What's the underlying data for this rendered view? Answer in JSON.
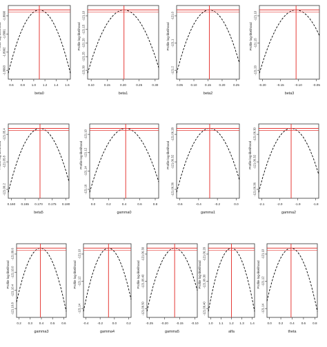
{
  "chart_data": [
    {
      "type": "line",
      "xlabel": "beta0",
      "ylabel": "Profile log-likelihood",
      "xticks": [
        "0.6",
        "0.8",
        "1.0",
        "1.2",
        "1.4",
        "1.6"
      ],
      "yticks": [
        "-1.8993",
        "-1.8992",
        "-1.8991",
        "-1.8990"
      ],
      "xlim": [
        0.55,
        1.65
      ],
      "ylim": [
        0,
        1
      ],
      "mle": 1.1,
      "colors": {
        "curve": "#000000",
        "mle": "#e53935"
      }
    },
    {
      "type": "line",
      "xlabel": "beta1",
      "ylabel": "Profile log-likelihood",
      "xticks": [
        "0.10",
        "0.15",
        "0.20",
        "0.25",
        "0.30"
      ],
      "yticks": [
        "-121.30",
        "-121.25",
        "-121.20",
        "-121.15",
        "-121.10"
      ],
      "xlim": [
        0.095,
        0.31
      ],
      "ylim": [
        0,
        1
      ],
      "mle": 0.205,
      "colors": {
        "curve": "#000000",
        "mle": "#e53935"
      }
    },
    {
      "type": "line",
      "xlabel": "beta2",
      "ylabel": "Profile log-likelihood",
      "xticks": [
        "0.05",
        "0.10",
        "0.15",
        "0.20",
        "0.25"
      ],
      "yticks": [
        "-121.2",
        "-121.1",
        "-121.0"
      ],
      "xlim": [
        0.04,
        0.27
      ],
      "ylim": [
        0,
        1
      ],
      "mle": 0.16,
      "colors": {
        "curve": "#000000",
        "mle": "#e53935"
      }
    },
    {
      "type": "line",
      "xlabel": "beta3",
      "ylabel": "Profile log-likelihood",
      "xticks": [
        "-0.20",
        "-0.15",
        "-0.10",
        "-0.05"
      ],
      "yticks": [
        "-121.20",
        "-121.15",
        "-121.10"
      ],
      "xlim": [
        -0.215,
        -0.035
      ],
      "ylim": [
        0,
        1
      ],
      "mle": -0.105,
      "colors": {
        "curve": "#000000",
        "mle": "#e53935"
      }
    },
    {
      "type": "line",
      "xlabel": "beta5",
      "ylabel": "Profile log-likelihood",
      "xticks": [
        "0.160",
        "0.165",
        "0.170",
        "0.175",
        "0.180"
      ],
      "yticks": [
        "-121.06.2",
        "-121.05.8",
        "-121.05.4"
      ],
      "xlim": [
        0.159,
        0.181
      ],
      "ylim": [
        0,
        1
      ],
      "mle": 0.1705,
      "colors": {
        "curve": "#000000",
        "mle": "#e53935"
      }
    },
    {
      "type": "line",
      "xlabel": "gamma0",
      "ylabel": "Profile log-likelihood",
      "xticks": [
        "0.0",
        "0.2",
        "0.4",
        "0.6",
        "0.8"
      ],
      "yticks": [
        "-121.16",
        "-121.14",
        "-121.12",
        "-121.10"
      ],
      "xlim": [
        -0.05,
        0.85
      ],
      "ylim": [
        0,
        1
      ],
      "mle": 0.42,
      "colors": {
        "curve": "#000000",
        "mle": "#e53935"
      }
    },
    {
      "type": "line",
      "xlabel": "gamma1",
      "ylabel": "Profile log-likelihood",
      "xticks": [
        "-0.6",
        "-0.4",
        "-0.2",
        "0.0"
      ],
      "yticks": [
        "-121.06.36",
        "-121.06.32",
        "-121.06.28"
      ],
      "xlim": [
        -0.72,
        0.02
      ],
      "ylim": [
        0,
        1
      ],
      "mle": -0.33,
      "colors": {
        "curve": "#000000",
        "mle": "#e53935"
      }
    },
    {
      "type": "line",
      "xlabel": "gamma2",
      "ylabel": "Profile log-likelihood",
      "xticks": [
        "-2.1",
        "-2.0",
        "-1.9",
        "-1.8"
      ],
      "yticks": [
        "-121.06.36",
        "-121.06.32",
        "-121.06.30"
      ],
      "xlim": [
        -2.13,
        -1.76
      ],
      "ylim": [
        0,
        1
      ],
      "mle": -1.93,
      "colors": {
        "curve": "#000000",
        "mle": "#e53935"
      }
    },
    {
      "type": "line",
      "xlabel": "gamma3",
      "ylabel": "Profile log-likelihood",
      "xticks": [
        "0.2",
        "0.3",
        "0.4",
        "0.5",
        "0.6"
      ],
      "yticks": [
        "-121.10.8",
        "-121.10.4",
        "-121.10.0",
        "-121.09.6"
      ],
      "xlim": [
        0.15,
        0.65
      ],
      "ylim": [
        0,
        1
      ],
      "mle": 0.39,
      "colors": {
        "curve": "#000000",
        "mle": "#e53935"
      }
    },
    {
      "type": "line",
      "xlabel": "gamma4",
      "ylabel": "Profile log-likelihood",
      "xticks": [
        "-0.4",
        "-0.2",
        "0.0",
        "0.2"
      ],
      "yticks": [
        "-121.14",
        "-121.12",
        "-121.10"
      ],
      "xlim": [
        -0.48,
        0.28
      ],
      "ylim": [
        0,
        1
      ],
      "mle": -0.08,
      "colors": {
        "curve": "#000000",
        "mle": "#e53935"
      }
    },
    {
      "type": "line",
      "xlabel": "gamma5",
      "ylabel": "Profile log-likelihood",
      "xticks": [
        "-0.25",
        "-0.20",
        "-0.15",
        "-0.10"
      ],
      "yticks": [
        "-121.06.50",
        "-121.06.40",
        "-121.06.30"
      ],
      "xlim": [
        -0.27,
        -0.07
      ],
      "ylim": [
        0,
        1
      ],
      "mle": -0.16,
      "colors": {
        "curve": "#000000",
        "mle": "#e53935"
      }
    },
    {
      "type": "line",
      "xlabel": "alfa",
      "ylabel": "Profile log-likelihood",
      "xticks": [
        "1.0",
        "1.1",
        "1.2",
        "1.3",
        "1.4"
      ],
      "yticks": [
        "-121.06.40",
        "-121.06.30",
        "-121.06.20"
      ],
      "xlim": [
        0.95,
        1.45
      ],
      "ylim": [
        0,
        1
      ],
      "mle": 1.2,
      "colors": {
        "curve": "#000000",
        "mle": "#e53935"
      }
    },
    {
      "type": "line",
      "xlabel": "theta",
      "ylabel": "Profile log-likelihood",
      "xticks": [
        "0.0",
        "0.2",
        "0.4",
        "0.6",
        "0.8"
      ],
      "yticks": [
        "-121.14",
        "-121.12",
        "-121.10"
      ],
      "xlim": [
        -0.05,
        0.85
      ],
      "ylim": [
        0,
        1
      ],
      "mle": 0.38,
      "colors": {
        "curve": "#000000",
        "mle": "#e53935"
      }
    }
  ]
}
